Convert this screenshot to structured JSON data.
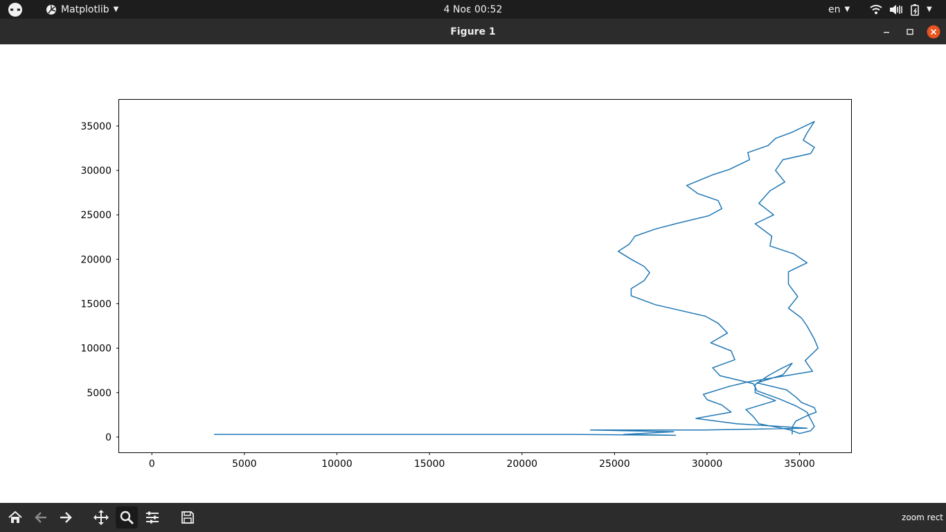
{
  "topbar": {
    "app_name": "Matplotlib",
    "clock": "4 Νοε  00:52",
    "language": "en"
  },
  "window": {
    "title": "Figure 1"
  },
  "toolbar": {
    "buttons": [
      "home-icon",
      "back-icon",
      "forward-icon",
      "pan-icon",
      "zoom-icon",
      "configure-subplots-icon",
      "save-icon"
    ],
    "active": "zoom-icon",
    "status_text": "zoom rect"
  },
  "colors": {
    "line": "#1f77b4",
    "topbar_bg": "#1d1d1d",
    "titlebar_bg": "#2c2c2c",
    "close_button": "#e95420"
  },
  "chart_data": {
    "type": "line",
    "title": "",
    "xlabel": "",
    "ylabel": "",
    "xlim": [
      -1770,
      37785
    ],
    "ylim": [
      -1720,
      37950
    ],
    "xticks": [
      0,
      5000,
      10000,
      15000,
      20000,
      25000,
      30000,
      35000
    ],
    "yticks": [
      0,
      5000,
      10000,
      15000,
      20000,
      25000,
      30000,
      35000
    ],
    "grid": false,
    "legend": "none",
    "series": [
      {
        "x": [
          3360,
          12600,
          22700,
          28300,
          25500,
          28200,
          23700,
          29900,
          35400,
          31600,
          29400,
          31300,
          30800,
          30000,
          29800,
          31200,
          32200,
          35700,
          35300,
          36000,
          35800,
          35400,
          35100,
          34400,
          34900,
          34400,
          34400,
          35400,
          34700,
          33400,
          33500,
          32600,
          33600,
          32800,
          33400,
          34200,
          33700,
          34100,
          35600,
          35800,
          35200,
          35400,
          35800,
          34600,
          33700,
          33300,
          32200,
          32300,
          31200,
          30300,
          28900,
          29500,
          30600,
          30800,
          30100,
          28300,
          27200,
          26100,
          25800,
          25200,
          25900,
          26600,
          26900,
          26600,
          25900,
          25900,
          27200,
          29900,
          30600,
          31100,
          30200,
          31300,
          31500,
          30300,
          30700,
          32500,
          32700,
          33900,
          34800,
          35400,
          35600,
          35800,
          35600,
          35000,
          34500,
          32800,
          32500,
          32100,
          33700,
          32600,
          32600,
          33300,
          34000,
          34600,
          34100,
          32700,
          34300,
          34800,
          35100,
          35800,
          35900,
          35500,
          34800,
          34600,
          34600
        ],
        "y": [
          300,
          300,
          300,
          200,
          300,
          600,
          800,
          800,
          1000,
          1500,
          2100,
          2800,
          3600,
          4200,
          4800,
          5700,
          6200,
          7400,
          8600,
          10000,
          11000,
          12500,
          13400,
          14500,
          15800,
          17200,
          18600,
          19600,
          20600,
          21500,
          22600,
          24000,
          25000,
          26300,
          27700,
          28700,
          30000,
          31200,
          31900,
          32600,
          33400,
          34200,
          35500,
          34300,
          33600,
          32800,
          32000,
          31200,
          30100,
          29500,
          28300,
          27400,
          26600,
          25700,
          24900,
          24000,
          23400,
          22600,
          21700,
          20900,
          20000,
          19200,
          18500,
          17600,
          16700,
          15900,
          14900,
          13600,
          12800,
          11700,
          10600,
          9700,
          8700,
          7800,
          6900,
          6000,
          5200,
          4300,
          3500,
          2800,
          2000,
          1200,
          700,
          400,
          800,
          1500,
          2300,
          3100,
          4100,
          5000,
          5900,
          6900,
          7700,
          8300,
          7000,
          6100,
          5300,
          4500,
          3900,
          3300,
          2800,
          2500,
          1800,
          1100,
          300
        ]
      }
    ]
  }
}
